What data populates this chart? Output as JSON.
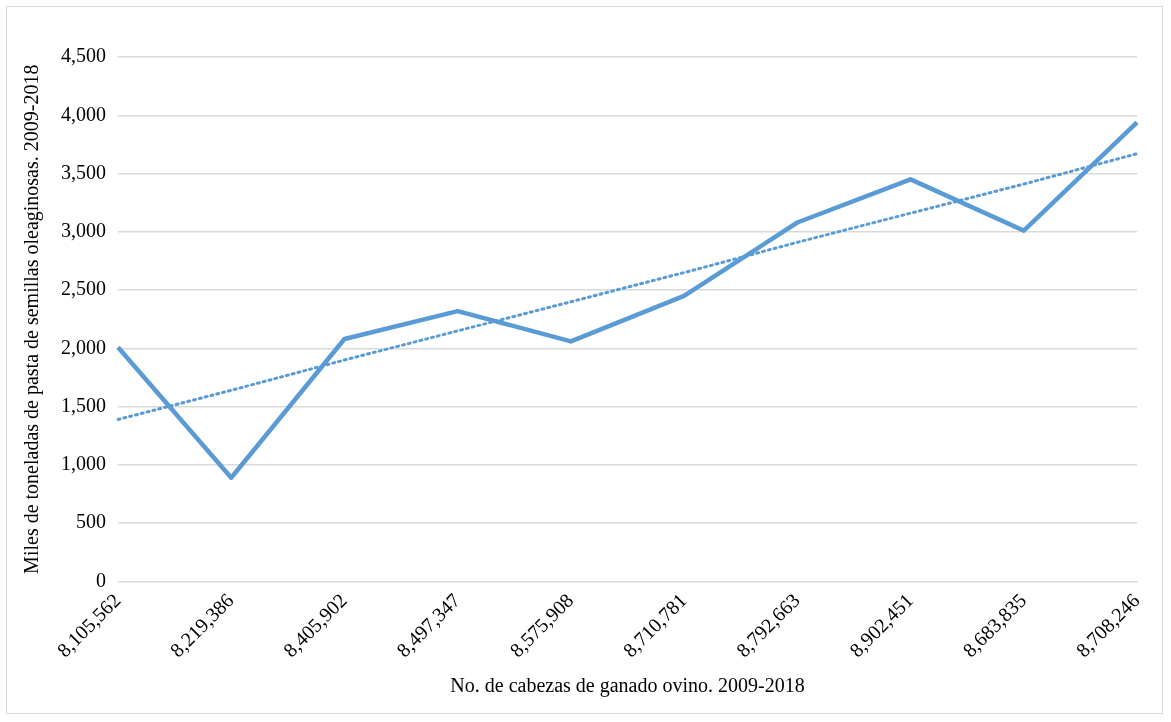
{
  "chart_data": {
    "type": "line",
    "xlabel": "No. de cabezas de ganado ovino. 2009-2018",
    "ylabel": "Miles de toneladas de pasta de semillas oleaginosas. 2009-2018",
    "categories": [
      "8,105,562",
      "8,219,386",
      "8,405,902",
      "8,497,347",
      "8,575,908",
      "8,710,781",
      "8,792,663",
      "8,902,451",
      "8,683,835",
      "8,708,246"
    ],
    "series": [
      {
        "color": "#5b9bd5",
        "values": [
          2010,
          890,
          2080,
          2320,
          2060,
          2450,
          3080,
          3450,
          3010,
          3940
        ],
        "line_style": "solid"
      },
      {
        "type": "line",
        "color": "#5b9bd5",
        "values": [
          1390,
          1640,
          1900,
          2150,
          2400,
          2650,
          2910,
          3160,
          3410,
          3670
        ],
        "line_style": "dotted"
      }
    ],
    "ylim": [
      0,
      4500
    ],
    "yticks": [
      0,
      500,
      {
        "value": 1000,
        "label": "1,000"
      },
      {
        "value": 1500,
        "label": "1,500"
      },
      {
        "value": 2000,
        "label": "2,000"
      },
      {
        "value": 2500,
        "label": "2,500"
      },
      {
        "value": 3000,
        "label": "3,000"
      },
      {
        "value": 3500,
        "label": "3,500"
      },
      {
        "value": 4000,
        "label": "4,000"
      },
      {
        "value": 4500,
        "label": "4,500"
      }
    ],
    "grid": "y",
    "legend": false,
    "marker": "none"
  }
}
